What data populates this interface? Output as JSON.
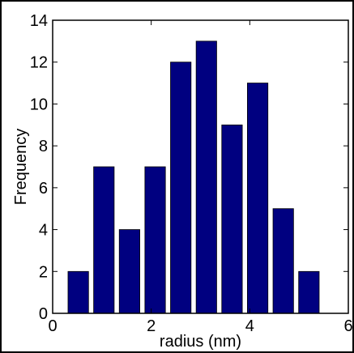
{
  "chart_data": {
    "type": "bar",
    "title": "",
    "xlabel": "radius (nm)",
    "ylabel": "Frequency",
    "x": [
      0.52,
      1.04,
      1.56,
      2.08,
      2.6,
      3.12,
      3.64,
      4.16,
      4.68,
      5.2
    ],
    "values": [
      2,
      7,
      4,
      7,
      12,
      13,
      9,
      11,
      5,
      2
    ],
    "xlim": [
      0,
      6
    ],
    "ylim": [
      0,
      14
    ],
    "xticks": [
      0,
      2,
      4,
      6
    ],
    "yticks": [
      0,
      2,
      4,
      6,
      8,
      10,
      12,
      14
    ],
    "grid": false,
    "bar_color": "#000080"
  }
}
